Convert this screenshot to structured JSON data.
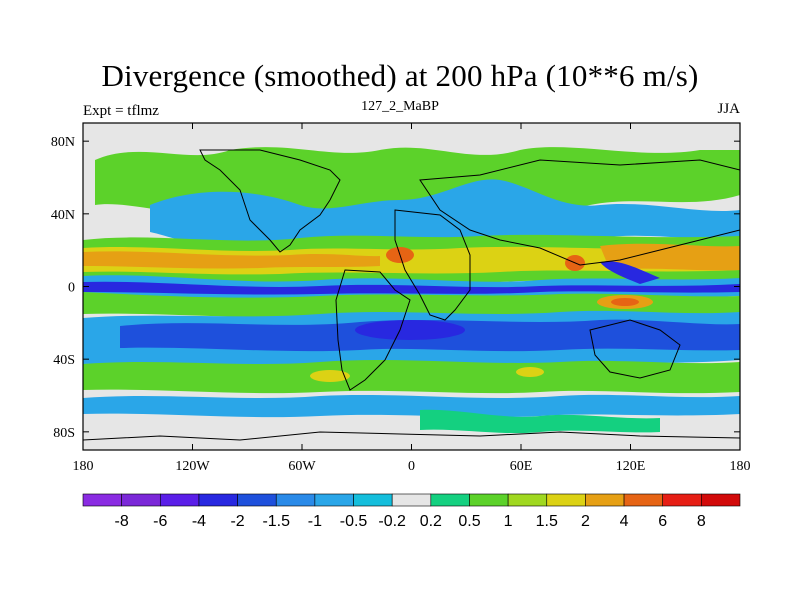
{
  "chart_data": {
    "type": "heatmap",
    "title": "Divergence (smoothed) at 200 hPa (10**6 m/s)",
    "left_label": "Expt = tflmz",
    "center_label": "127_2_MaBP",
    "right_label": "JJA",
    "x_axis": {
      "range": [
        -180,
        180
      ],
      "ticks": [
        -180,
        -120,
        -60,
        0,
        60,
        120,
        180
      ],
      "tick_labels": [
        "180",
        "120W",
        "60W",
        "0",
        "60E",
        "120E",
        "180"
      ]
    },
    "y_axis": {
      "range": [
        -90,
        90
      ],
      "ticks": [
        80,
        40,
        0,
        -40,
        -80
      ],
      "tick_labels": [
        "80N",
        "40N",
        "0",
        "40S",
        "80S"
      ]
    },
    "colorbar": {
      "labels": [
        "-8",
        "-6",
        "-4",
        "-2",
        "-1.5",
        "-1",
        "-0.5",
        "-0.2",
        "0.2",
        "0.5",
        "1",
        "1.5",
        "2",
        "4",
        "6",
        "8"
      ],
      "colors": [
        "#8a2be2",
        "#7b28d8",
        "#5a1ee8",
        "#2828e0",
        "#1e50dc",
        "#2a8ae8",
        "#2aa6e8",
        "#14bedc",
        "#e6e6e6",
        "#14d080",
        "#5cd22a",
        "#a0d820",
        "#dcd214",
        "#e6a014",
        "#e66414",
        "#e61e14",
        "#d20a0a"
      ]
    },
    "features": [
      {
        "band": "positive divergence band",
        "lat_center": 10,
        "lon_span": [
          -180,
          180
        ],
        "max_level": "6"
      },
      {
        "band": "negative divergence band",
        "lat_center": 0,
        "lon_span": [
          -180,
          180
        ],
        "max_level": "-4"
      },
      {
        "band": "negative divergence band",
        "lat_center": -25,
        "lon_span": [
          -180,
          180
        ],
        "max_level": "-4"
      },
      {
        "band": "positive divergence band",
        "lat_center": -40,
        "lon_span": [
          -180,
          180
        ],
        "max_level": "1.5"
      }
    ]
  }
}
